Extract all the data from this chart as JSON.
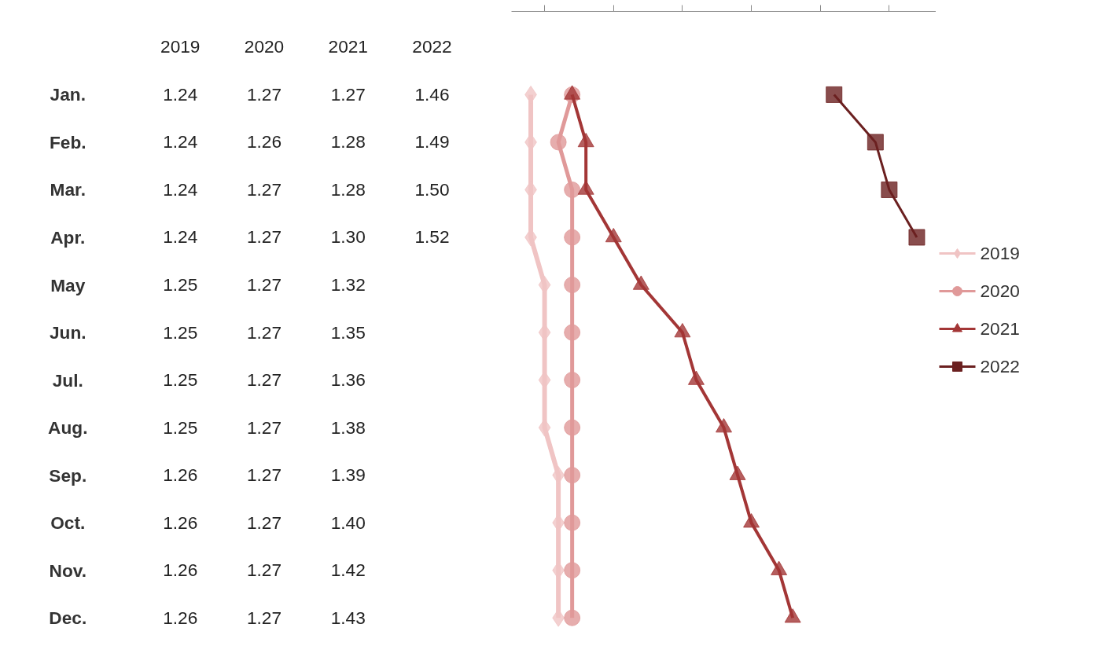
{
  "chart_data": {
    "type": "line",
    "orientation": "horizontal",
    "categories": [
      "Jan.",
      "Feb.",
      "Mar.",
      "Apr.",
      "May",
      "Jun.",
      "Jul.",
      "Aug.",
      "Sep.",
      "Oct.",
      "Nov.",
      "Dec."
    ],
    "series": [
      {
        "name": "2019",
        "color": "#f0c4c4",
        "marker": "diamond",
        "values": [
          1.24,
          1.24,
          1.24,
          1.24,
          1.25,
          1.25,
          1.25,
          1.25,
          1.26,
          1.26,
          1.26,
          1.26
        ],
        "value_labels": [
          "1.24",
          "1.24",
          "1.24",
          "1.24",
          "1.25",
          "1.25",
          "1.25",
          "1.25",
          "1.26",
          "1.26",
          "1.26",
          "1.26"
        ]
      },
      {
        "name": "2020",
        "color": "#e09999",
        "marker": "circle",
        "values": [
          1.27,
          1.26,
          1.27,
          1.27,
          1.27,
          1.27,
          1.27,
          1.27,
          1.27,
          1.27,
          1.27,
          1.27
        ],
        "value_labels": [
          "1.27",
          "1.26",
          "1.27",
          "1.27",
          "1.27",
          "1.27",
          "1.27",
          "1.27",
          "1.27",
          "1.27",
          "1.27",
          "1.27"
        ]
      },
      {
        "name": "2021",
        "color": "#a33636",
        "marker": "triangle",
        "values": [
          1.27,
          1.28,
          1.28,
          1.3,
          1.32,
          1.35,
          1.36,
          1.38,
          1.39,
          1.4,
          1.42,
          1.43
        ],
        "value_labels": [
          "1.27",
          "1.28",
          "1.28",
          "1.30",
          "1.32",
          "1.35",
          "1.36",
          "1.38",
          "1.39",
          "1.40",
          "1.42",
          "1.43"
        ]
      },
      {
        "name": "2022",
        "color": "#6b2020",
        "marker": "square",
        "values": [
          1.46,
          1.49,
          1.5,
          1.52,
          null,
          null,
          null,
          null,
          null,
          null,
          null,
          null
        ],
        "value_labels": [
          "1.46",
          "1.49",
          "1.50",
          "1.52",
          null,
          null,
          null,
          null,
          null,
          null,
          null,
          null
        ]
      }
    ],
    "grid": false,
    "legend": "right",
    "tick_labels": false,
    "line_style": "solid"
  }
}
